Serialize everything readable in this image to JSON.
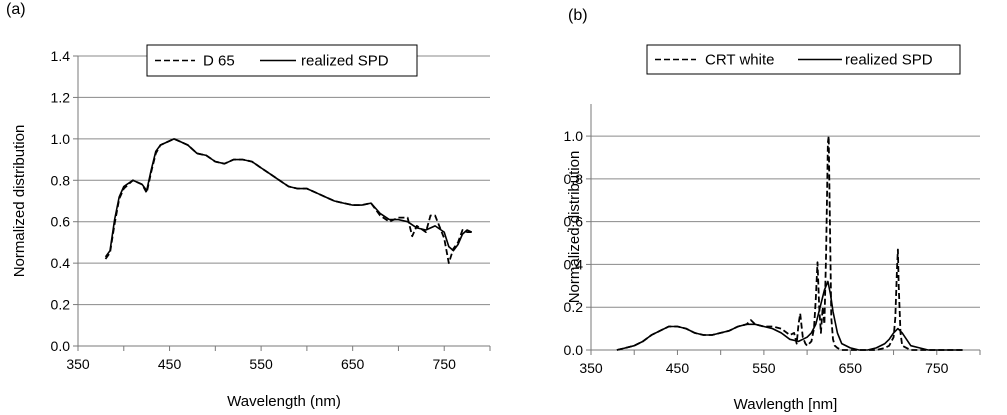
{
  "chart_data": [
    {
      "type": "line",
      "panel_label": "(a)",
      "xlabel": "Wavelength (nm)",
      "ylabel": "Normalized distribution",
      "xlim": [
        350,
        800
      ],
      "ylim": [
        0,
        1.4
      ],
      "xticks": [
        350,
        450,
        550,
        650,
        750
      ],
      "yticks": [
        0.0,
        0.2,
        0.4,
        0.6,
        0.8,
        1.0,
        1.2,
        1.4
      ],
      "ytick_labels": [
        "0.0",
        "0.2",
        "0.4",
        "0.6",
        "0.8",
        "1.0",
        "1.2",
        "1.4"
      ],
      "grid": "horizontal",
      "legend": "top-center",
      "series": [
        {
          "name": "D 65",
          "style": "dashed",
          "x": [
            380,
            385,
            390,
            395,
            400,
            410,
            420,
            425,
            430,
            435,
            440,
            450,
            455,
            460,
            470,
            480,
            490,
            500,
            510,
            520,
            530,
            540,
            550,
            560,
            570,
            580,
            590,
            600,
            610,
            620,
            630,
            640,
            650,
            660,
            670,
            680,
            690,
            700,
            710,
            715,
            720,
            730,
            735,
            740,
            750,
            755,
            760,
            765,
            770,
            775,
            780
          ],
          "y": [
            0.42,
            0.45,
            0.59,
            0.71,
            0.76,
            0.8,
            0.78,
            0.74,
            0.84,
            0.93,
            0.97,
            0.99,
            1.0,
            0.99,
            0.97,
            0.93,
            0.92,
            0.89,
            0.88,
            0.9,
            0.9,
            0.89,
            0.86,
            0.83,
            0.8,
            0.77,
            0.76,
            0.76,
            0.74,
            0.72,
            0.7,
            0.69,
            0.68,
            0.68,
            0.69,
            0.63,
            0.6,
            0.62,
            0.62,
            0.53,
            0.58,
            0.55,
            0.63,
            0.63,
            0.52,
            0.4,
            0.47,
            0.5,
            0.56,
            0.55,
            0.55
          ]
        },
        {
          "name": "realized SPD",
          "style": "solid",
          "x": [
            380,
            385,
            390,
            395,
            400,
            410,
            420,
            425,
            430,
            435,
            440,
            450,
            455,
            460,
            470,
            480,
            490,
            500,
            510,
            520,
            530,
            540,
            550,
            560,
            570,
            580,
            590,
            600,
            610,
            620,
            630,
            640,
            650,
            660,
            670,
            680,
            690,
            700,
            710,
            720,
            730,
            740,
            750,
            755,
            760,
            765,
            770,
            775,
            780
          ],
          "y": [
            0.43,
            0.46,
            0.61,
            0.72,
            0.77,
            0.8,
            0.78,
            0.75,
            0.85,
            0.94,
            0.97,
            0.99,
            1.0,
            0.99,
            0.97,
            0.93,
            0.92,
            0.89,
            0.88,
            0.9,
            0.9,
            0.89,
            0.86,
            0.83,
            0.8,
            0.77,
            0.76,
            0.76,
            0.74,
            0.72,
            0.7,
            0.69,
            0.68,
            0.68,
            0.69,
            0.64,
            0.61,
            0.61,
            0.6,
            0.57,
            0.56,
            0.58,
            0.55,
            0.48,
            0.46,
            0.49,
            0.54,
            0.56,
            0.55
          ]
        }
      ]
    },
    {
      "type": "line",
      "panel_label": "(b)",
      "xlabel": "Wavlength [nm]",
      "ylabel": "Normalized distribution",
      "xlim": [
        350,
        800
      ],
      "ylim": [
        0,
        1.15
      ],
      "xticks": [
        350,
        450,
        550,
        650,
        750
      ],
      "yticks": [
        0.0,
        0.2,
        0.4,
        0.6,
        0.8,
        1.0
      ],
      "ytick_labels": [
        "0.0",
        "0.2",
        "0.4",
        "0.6",
        "0.8",
        "1.0"
      ],
      "grid": "horizontal",
      "legend": "top-center",
      "series": [
        {
          "name": "CRT white",
          "style": "dashed",
          "x": [
            380,
            390,
            400,
            410,
            420,
            430,
            440,
            450,
            460,
            470,
            480,
            490,
            500,
            510,
            520,
            530,
            535,
            540,
            550,
            560,
            570,
            580,
            585,
            588,
            590,
            592,
            595,
            598,
            600,
            605,
            608,
            610,
            612,
            614,
            616,
            618,
            620,
            622,
            624,
            625,
            626,
            628,
            630,
            632,
            635,
            640,
            650,
            660,
            670,
            680,
            690,
            695,
            700,
            702,
            704,
            705,
            706,
            708,
            710,
            715,
            720,
            730,
            740,
            750,
            760,
            770,
            780
          ],
          "y": [
            0.0,
            0.01,
            0.02,
            0.04,
            0.07,
            0.09,
            0.11,
            0.11,
            0.1,
            0.08,
            0.07,
            0.07,
            0.08,
            0.09,
            0.11,
            0.12,
            0.14,
            0.12,
            0.11,
            0.11,
            0.1,
            0.07,
            0.08,
            0.03,
            0.12,
            0.17,
            0.06,
            0.03,
            0.02,
            0.04,
            0.1,
            0.24,
            0.41,
            0.2,
            0.08,
            0.2,
            0.12,
            0.45,
            0.97,
            1.0,
            0.7,
            0.15,
            0.05,
            0.02,
            0.01,
            0.0,
            0.0,
            0.0,
            0.0,
            0.0,
            0.01,
            0.02,
            0.06,
            0.15,
            0.38,
            0.47,
            0.3,
            0.08,
            0.02,
            0.01,
            0.0,
            0.0,
            0.0,
            0.0,
            0.0,
            0.0,
            0.0
          ]
        },
        {
          "name": "realized SPD",
          "style": "solid",
          "x": [
            380,
            390,
            400,
            410,
            420,
            430,
            440,
            450,
            460,
            470,
            480,
            490,
            500,
            510,
            520,
            530,
            540,
            550,
            560,
            570,
            580,
            590,
            595,
            600,
            605,
            610,
            615,
            620,
            624,
            627,
            630,
            635,
            640,
            650,
            660,
            670,
            680,
            690,
            695,
            700,
            705,
            710,
            715,
            720,
            730,
            740,
            750,
            760,
            780
          ],
          "y": [
            0.0,
            0.01,
            0.02,
            0.04,
            0.07,
            0.09,
            0.11,
            0.11,
            0.1,
            0.08,
            0.07,
            0.07,
            0.08,
            0.09,
            0.11,
            0.12,
            0.12,
            0.11,
            0.1,
            0.08,
            0.05,
            0.04,
            0.05,
            0.06,
            0.08,
            0.12,
            0.2,
            0.28,
            0.32,
            0.26,
            0.18,
            0.08,
            0.03,
            0.01,
            0.0,
            0.0,
            0.01,
            0.03,
            0.05,
            0.08,
            0.1,
            0.08,
            0.05,
            0.02,
            0.01,
            0.0,
            0.0,
            0.0,
            0.0
          ]
        }
      ]
    }
  ],
  "extra_marks": {
    "stray_dot": "."
  }
}
